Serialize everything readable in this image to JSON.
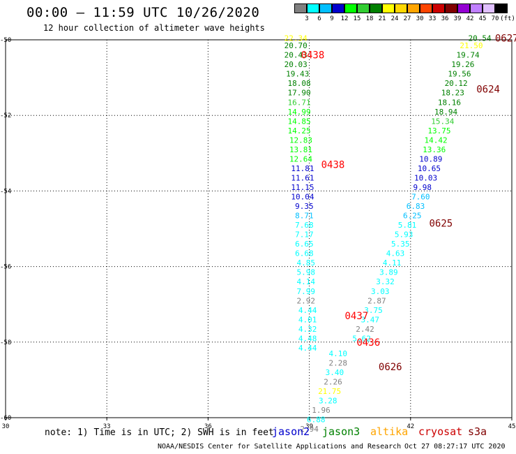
{
  "header": {
    "title": "00:00 – 11:59 UTC 10/26/2020",
    "subtitle": "12 hour collection of altimeter wave heights"
  },
  "legend": {
    "colors": [
      "#808080",
      "#00ffff",
      "#00bfff",
      "#0000cd",
      "#00ff00",
      "#32cd32",
      "#008000",
      "#ffff00",
      "#ffd700",
      "#ffa500",
      "#ff4500",
      "#cc0000",
      "#800000",
      "#9400d3",
      "#c080ff",
      "#e0c0ff",
      "#000000"
    ],
    "labels": [
      "3",
      "6",
      "9",
      "12",
      "15",
      "18",
      "21",
      "24",
      "27",
      "30",
      "33",
      "36",
      "39",
      "42",
      "45",
      "70",
      "(ft)"
    ]
  },
  "axes": {
    "x_ticks": [
      "30",
      "33",
      "36",
      "39",
      "42",
      "45"
    ],
    "y_ticks": [
      "-50",
      "-52",
      "-54",
      "-56",
      "-58",
      "-60"
    ]
  },
  "tracks": [
    {
      "satellite": "jason3",
      "points": [
        {
          "lon": 38.6,
          "lat": -49.95,
          "v": "22.34",
          "c": "#ffff00"
        },
        {
          "lon": 38.6,
          "lat": -50.15,
          "v": "20.70",
          "c": "#008000"
        },
        {
          "lon": 38.6,
          "lat": -50.4,
          "v": "20.43",
          "c": "#008000"
        },
        {
          "lon": 38.6,
          "lat": -50.65,
          "v": "20.03",
          "c": "#008000"
        },
        {
          "lon": 38.65,
          "lat": -50.9,
          "v": "19.43",
          "c": "#008000"
        },
        {
          "lon": 38.7,
          "lat": -51.15,
          "v": "18.08",
          "c": "#008000"
        },
        {
          "lon": 38.7,
          "lat": -51.4,
          "v": "17.90",
          "c": "#008000"
        },
        {
          "lon": 38.7,
          "lat": -51.65,
          "v": "16.71",
          "c": "#32cd32"
        },
        {
          "lon": 38.7,
          "lat": -51.9,
          "v": "14.99",
          "c": "#00ff00"
        },
        {
          "lon": 38.7,
          "lat": -52.15,
          "v": "14.85",
          "c": "#00ff00"
        },
        {
          "lon": 38.7,
          "lat": -52.4,
          "v": "14.25",
          "c": "#00ff00"
        },
        {
          "lon": 38.75,
          "lat": -52.65,
          "v": "12.83",
          "c": "#00ff00"
        },
        {
          "lon": 38.75,
          "lat": -52.9,
          "v": "13.81",
          "c": "#00ff00"
        },
        {
          "lon": 38.75,
          "lat": -53.15,
          "v": "12.64",
          "c": "#00ff00"
        },
        {
          "lon": 38.8,
          "lat": -53.4,
          "v": "11.81",
          "c": "#0000cd"
        },
        {
          "lon": 38.8,
          "lat": -53.65,
          "v": "11.61",
          "c": "#0000cd"
        },
        {
          "lon": 38.8,
          "lat": -53.9,
          "v": "11.15",
          "c": "#0000cd"
        },
        {
          "lon": 38.8,
          "lat": -54.15,
          "v": "10.04",
          "c": "#0000cd"
        },
        {
          "lon": 38.85,
          "lat": -54.4,
          "v": "9.35",
          "c": "#0000cd"
        },
        {
          "lon": 38.85,
          "lat": -54.65,
          "v": "8.71",
          "c": "#00bfff"
        },
        {
          "lon": 38.85,
          "lat": -54.9,
          "v": "7.68",
          "c": "#00ffff"
        },
        {
          "lon": 38.85,
          "lat": -55.15,
          "v": "7.17",
          "c": "#00ffff"
        },
        {
          "lon": 38.85,
          "lat": -55.4,
          "v": "6.65",
          "c": "#00ffff"
        },
        {
          "lon": 38.85,
          "lat": -55.65,
          "v": "6.68",
          "c": "#00ffff"
        },
        {
          "lon": 38.9,
          "lat": -55.9,
          "v": "4.85",
          "c": "#00ffff"
        },
        {
          "lon": 38.9,
          "lat": -56.15,
          "v": "5.98",
          "c": "#00ffff"
        },
        {
          "lon": 38.9,
          "lat": -56.4,
          "v": "4.14",
          "c": "#00ffff"
        },
        {
          "lon": 38.9,
          "lat": -56.65,
          "v": "7.99",
          "c": "#00ffff"
        },
        {
          "lon": 38.9,
          "lat": -56.9,
          "v": "2.92",
          "c": "#808080"
        },
        {
          "lon": 38.95,
          "lat": -57.15,
          "v": "4.44",
          "c": "#00ffff"
        },
        {
          "lon": 38.95,
          "lat": -57.4,
          "v": "4.01",
          "c": "#00ffff"
        },
        {
          "lon": 38.95,
          "lat": -57.65,
          "v": "4.32",
          "c": "#00ffff"
        },
        {
          "lon": 38.95,
          "lat": -57.9,
          "v": "4.48",
          "c": "#00ffff"
        },
        {
          "lon": 38.95,
          "lat": -58.15,
          "v": "4.44",
          "c": "#00ffff"
        }
      ]
    },
    {
      "satellite": "cryosat",
      "points": [
        {
          "lon": 39.85,
          "lat": -58.3,
          "v": "4.10",
          "c": "#00ffff"
        },
        {
          "lon": 39.85,
          "lat": -58.55,
          "v": "2.28",
          "c": "#808080"
        },
        {
          "lon": 39.75,
          "lat": -58.8,
          "v": "3.40",
          "c": "#00ffff"
        },
        {
          "lon": 39.7,
          "lat": -59.05,
          "v": "2.26",
          "c": "#808080"
        },
        {
          "lon": 39.6,
          "lat": -59.3,
          "v": "21.75",
          "c": "#ffff00"
        },
        {
          "lon": 39.55,
          "lat": -59.55,
          "v": "3.28",
          "c": "#00ffff"
        },
        {
          "lon": 39.35,
          "lat": -59.8,
          "v": "1.96",
          "c": "#808080"
        },
        {
          "lon": 39.2,
          "lat": -60.05,
          "v": "6.88",
          "c": "#00ffff"
        },
        {
          "lon": 39.0,
          "lat": -60.3,
          "v": "2.94",
          "c": "#808080"
        }
      ]
    },
    {
      "satellite": "s3a",
      "points": [
        {
          "lon": 44.05,
          "lat": -49.95,
          "v": "20.54",
          "c": "#008000"
        },
        {
          "lon": 43.8,
          "lat": -50.15,
          "v": "21.50",
          "c": "#ffff00"
        },
        {
          "lon": 43.7,
          "lat": -50.4,
          "v": "19.74",
          "c": "#008000"
        },
        {
          "lon": 43.55,
          "lat": -50.65,
          "v": "19.26",
          "c": "#008000"
        },
        {
          "lon": 43.45,
          "lat": -50.9,
          "v": "19.56",
          "c": "#008000"
        },
        {
          "lon": 43.35,
          "lat": -51.15,
          "v": "20.12",
          "c": "#008000"
        },
        {
          "lon": 43.25,
          "lat": -51.4,
          "v": "18.23",
          "c": "#008000"
        },
        {
          "lon": 43.15,
          "lat": -51.65,
          "v": "18.16",
          "c": "#008000"
        },
        {
          "lon": 43.05,
          "lat": -51.9,
          "v": "18.94",
          "c": "#008000"
        },
        {
          "lon": 42.95,
          "lat": -52.15,
          "v": "15.34",
          "c": "#32cd32"
        },
        {
          "lon": 42.85,
          "lat": -52.4,
          "v": "13.75",
          "c": "#00ff00"
        },
        {
          "lon": 42.75,
          "lat": -52.65,
          "v": "14.42",
          "c": "#00ff00"
        },
        {
          "lon": 42.7,
          "lat": -52.9,
          "v": "13.36",
          "c": "#00ff00"
        },
        {
          "lon": 42.6,
          "lat": -53.15,
          "v": "10.89",
          "c": "#0000cd"
        },
        {
          "lon": 42.55,
          "lat": -53.4,
          "v": "10.65",
          "c": "#0000cd"
        },
        {
          "lon": 42.45,
          "lat": -53.65,
          "v": "10.03",
          "c": "#0000cd"
        },
        {
          "lon": 42.35,
          "lat": -53.9,
          "v": "9.98",
          "c": "#0000cd"
        },
        {
          "lon": 42.3,
          "lat": -54.15,
          "v": "7.60",
          "c": "#00bfff"
        },
        {
          "lon": 42.15,
          "lat": -54.4,
          "v": "6.83",
          "c": "#00bfff"
        },
        {
          "lon": 42.05,
          "lat": -54.65,
          "v": "6.25",
          "c": "#00bfff"
        },
        {
          "lon": 41.9,
          "lat": -54.9,
          "v": "5.81",
          "c": "#00ffff"
        },
        {
          "lon": 41.8,
          "lat": -55.15,
          "v": "5.93",
          "c": "#00ffff"
        },
        {
          "lon": 41.7,
          "lat": -55.4,
          "v": "5.35",
          "c": "#00ffff"
        },
        {
          "lon": 41.55,
          "lat": -55.65,
          "v": "4.63",
          "c": "#00ffff"
        },
        {
          "lon": 41.45,
          "lat": -55.9,
          "v": "4.11",
          "c": "#00ffff"
        },
        {
          "lon": 41.35,
          "lat": -56.15,
          "v": "3.89",
          "c": "#00ffff"
        },
        {
          "lon": 41.25,
          "lat": -56.4,
          "v": "3.32",
          "c": "#00ffff"
        },
        {
          "lon": 41.1,
          "lat": -56.65,
          "v": "3.03",
          "c": "#00ffff"
        },
        {
          "lon": 41.0,
          "lat": -56.9,
          "v": "2.87",
          "c": "#808080"
        },
        {
          "lon": 40.9,
          "lat": -57.15,
          "v": "3.75",
          "c": "#00ffff"
        },
        {
          "lon": 40.8,
          "lat": -57.4,
          "v": "3.47",
          "c": "#00ffff"
        },
        {
          "lon": 40.65,
          "lat": -57.65,
          "v": "2.42",
          "c": "#808080"
        },
        {
          "lon": 40.55,
          "lat": -57.9,
          "v": "5.62",
          "c": "#00ffff"
        }
      ]
    }
  ],
  "time_labels": [
    {
      "lon": 39.1,
      "lat": -50.4,
      "t": "0438",
      "c": "#ff0000"
    },
    {
      "lon": 39.7,
      "lat": -53.3,
      "t": "0438",
      "c": "#ff0000"
    },
    {
      "lon": 40.4,
      "lat": -57.3,
      "t": "0437",
      "c": "#ff0000"
    },
    {
      "lon": 40.75,
      "lat": -58.0,
      "t": "0436",
      "c": "#ff0000"
    },
    {
      "lon": 41.4,
      "lat": -58.65,
      "t": "0626",
      "c": "#800000"
    },
    {
      "lon": 42.9,
      "lat": -54.85,
      "t": "0625",
      "c": "#800000"
    },
    {
      "lon": 44.3,
      "lat": -51.3,
      "t": "0624",
      "c": "#800000"
    },
    {
      "lon": 44.85,
      "lat": -49.95,
      "t": "0627",
      "c": "#800000"
    }
  ],
  "footer": {
    "note": "note: 1) Time is in UTC; 2) SWH is in feet",
    "satellites": [
      {
        "name": "jason2",
        "color": "#0000cd"
      },
      {
        "name": "jason3",
        "color": "#008000"
      },
      {
        "name": "altika",
        "color": "#ffa500"
      },
      {
        "name": "cryosat",
        "color": "#cc0000"
      },
      {
        "name": "s3a",
        "color": "#800000"
      }
    ],
    "credit": "NOAA/NESDIS Center for Satellite Applications and Research",
    "timestamp": "Oct 27 08:27:17 UTC 2020"
  }
}
